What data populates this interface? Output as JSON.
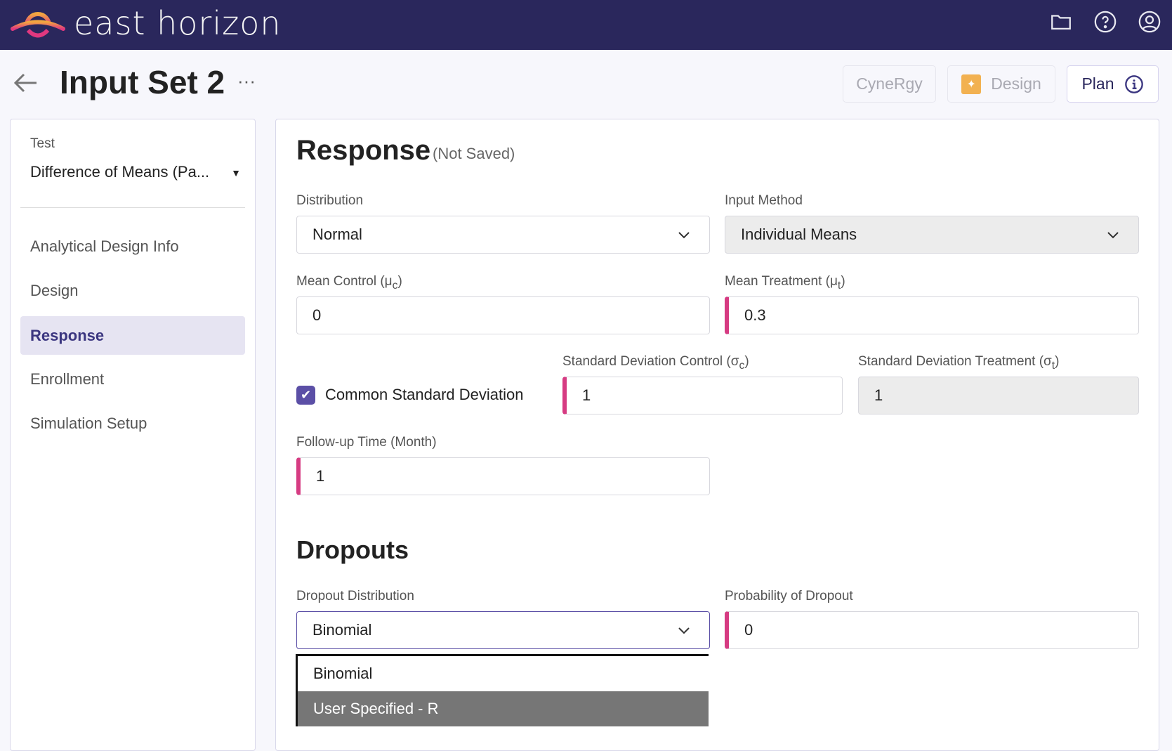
{
  "app": {
    "brand": "east horizon",
    "icons": [
      "folder-icon",
      "help-icon",
      "user-icon"
    ]
  },
  "header": {
    "title": "Input Set 2",
    "more": "···",
    "buttons": {
      "cynergy": "CyneRgy",
      "design": "Design",
      "plan": "Plan"
    }
  },
  "sidebar": {
    "test_label": "Test",
    "test_value": "Difference of Means (Pa...",
    "items": [
      {
        "label": "Analytical Design Info"
      },
      {
        "label": "Design"
      },
      {
        "label": "Response",
        "active": true
      },
      {
        "label": "Enrollment"
      },
      {
        "label": "Simulation Setup"
      }
    ]
  },
  "response": {
    "title": "Response",
    "status": "(Not Saved)",
    "distribution": {
      "label": "Distribution",
      "value": "Normal"
    },
    "input_method": {
      "label": "Input Method",
      "value": "Individual Means"
    },
    "mean_control": {
      "label": "Mean Control (μ",
      "sub": "c",
      "close": ")",
      "value": "0"
    },
    "mean_treatment": {
      "label": "Mean Treatment (μ",
      "sub": "t",
      "close": ")",
      "value": "0.3"
    },
    "common_sd": {
      "label": "Common Standard Deviation",
      "checked": true
    },
    "sd_control": {
      "label": "Standard Deviation Control (σ",
      "sub": "c",
      "close": ")",
      "value": "1"
    },
    "sd_treatment": {
      "label": "Standard Deviation Treatment (σ",
      "sub": "t",
      "close": ")",
      "value": "1"
    },
    "followup": {
      "label": "Follow-up Time (Month)",
      "value": "1"
    }
  },
  "dropouts": {
    "title": "Dropouts",
    "distribution": {
      "label": "Dropout Distribution",
      "value": "Binomial",
      "options": [
        "Binomial",
        "User Specified - R"
      ],
      "highlighted": "User Specified - R"
    },
    "probability": {
      "label": "Probability of Dropout",
      "value": "0"
    }
  },
  "colors": {
    "topbar": "#2a275c",
    "accent": "#3b3680",
    "required": "#d63b82",
    "checkbox": "#5b4fa6"
  }
}
